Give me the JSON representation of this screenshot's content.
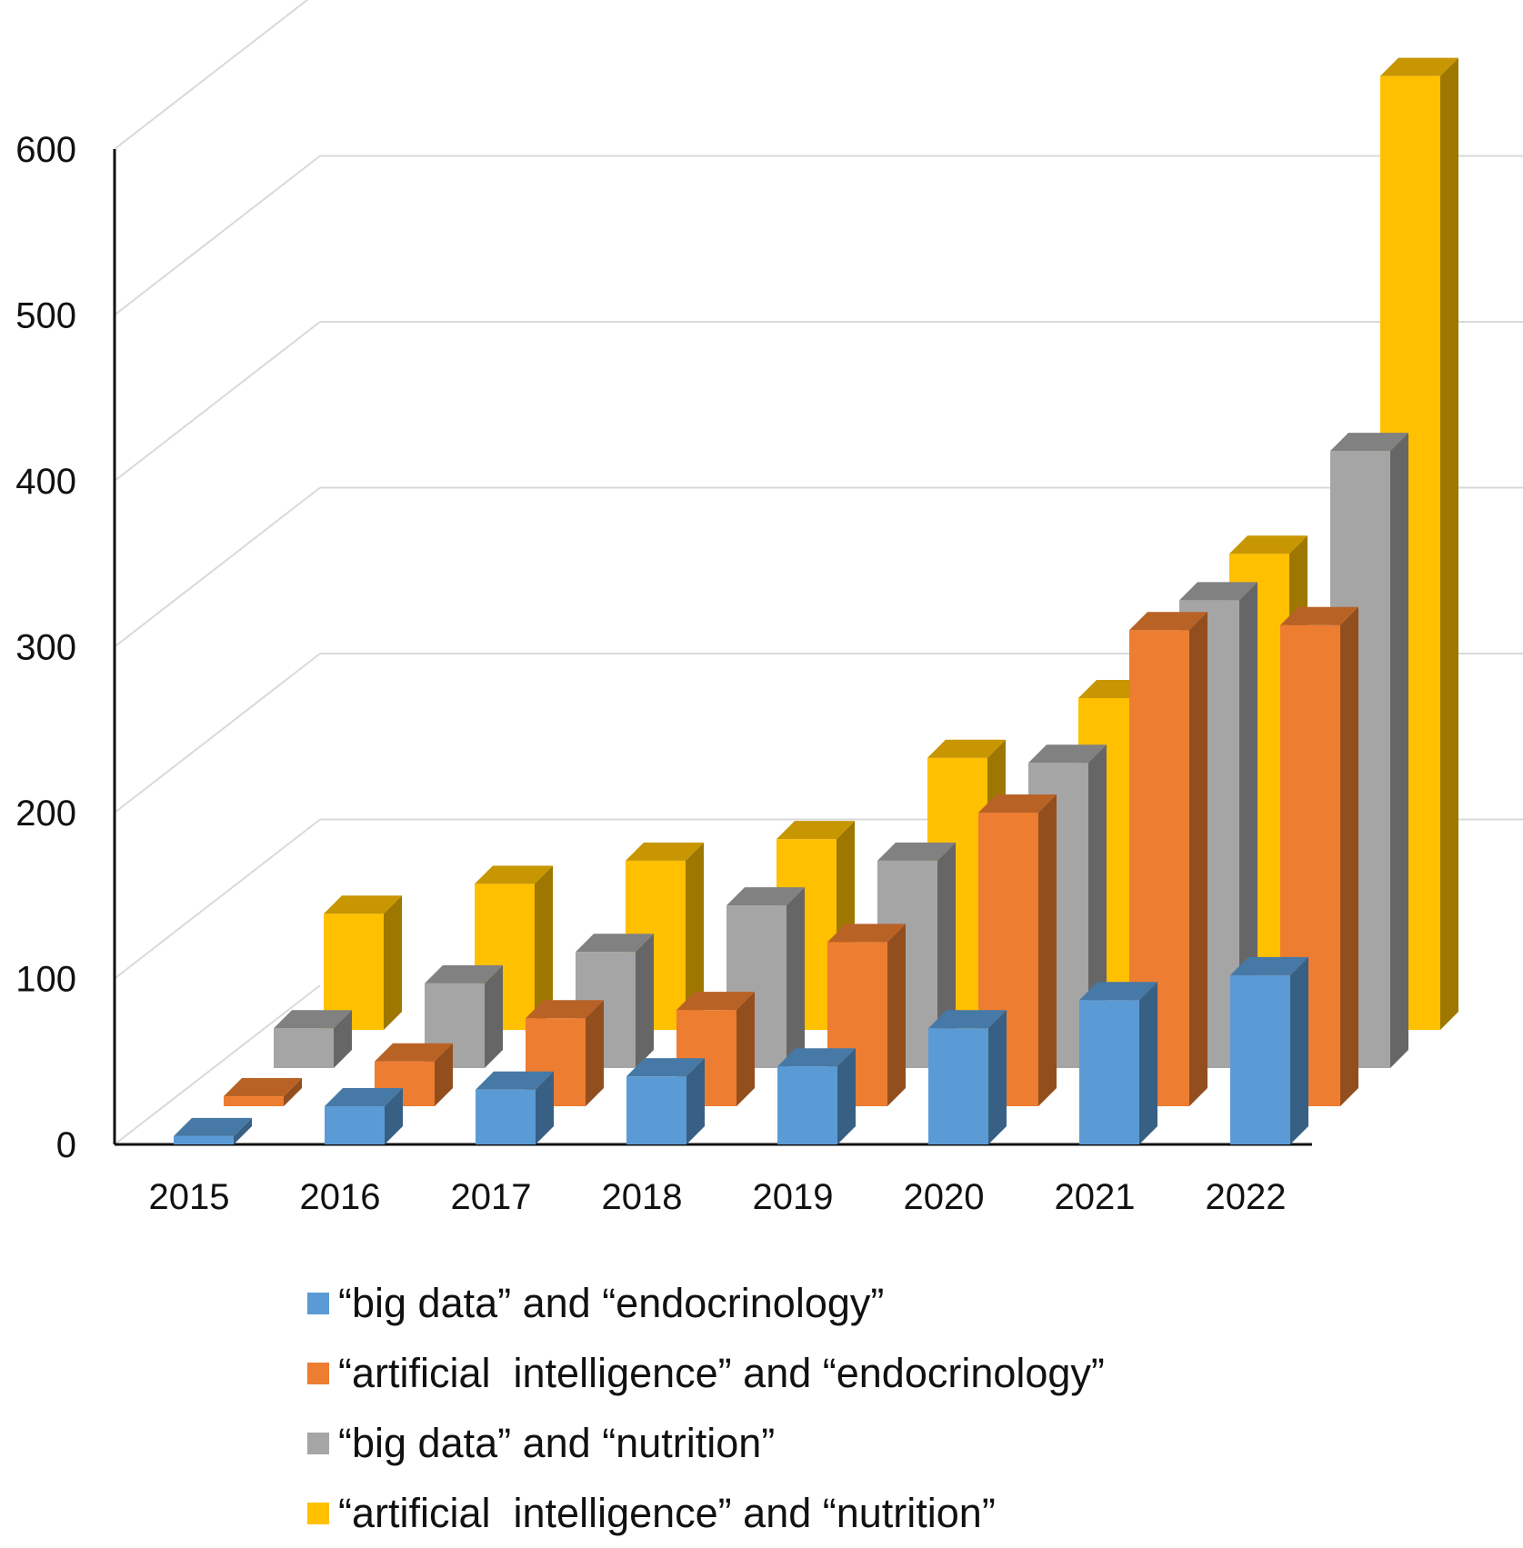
{
  "chart_data": {
    "type": "bar",
    "style": "3d-clustered-columns",
    "categories": [
      "2015",
      "2016",
      "2017",
      "2018",
      "2019",
      "2020",
      "2021",
      "2022"
    ],
    "series": [
      {
        "name": "“big data” and “endocrinology”",
        "color": "#5b9bd5",
        "values": [
          5,
          23,
          33,
          41,
          47,
          70,
          87,
          102
        ]
      },
      {
        "name": "“artificial  intelligence” and “endocrinology”",
        "color": "#ed7d31",
        "values": [
          6,
          27,
          53,
          58,
          99,
          177,
          287,
          290
        ]
      },
      {
        "name": "“big data” and “nutrition”",
        "color": "#a5a5a5",
        "values": [
          24,
          51,
          70,
          98,
          125,
          184,
          282,
          372
        ]
      },
      {
        "name": "“artificial  intelligence” and “nutrition”",
        "color": "#ffc000",
        "values": [
          70,
          88,
          102,
          115,
          164,
          200,
          287,
          575
        ]
      }
    ],
    "yticks": [
      "0",
      "100",
      "200",
      "300",
      "400",
      "500",
      "600"
    ],
    "ylim": [
      0,
      600
    ],
    "grid": true,
    "legend_position": "bottom",
    "title": "",
    "xlabel": "",
    "ylabel": ""
  }
}
